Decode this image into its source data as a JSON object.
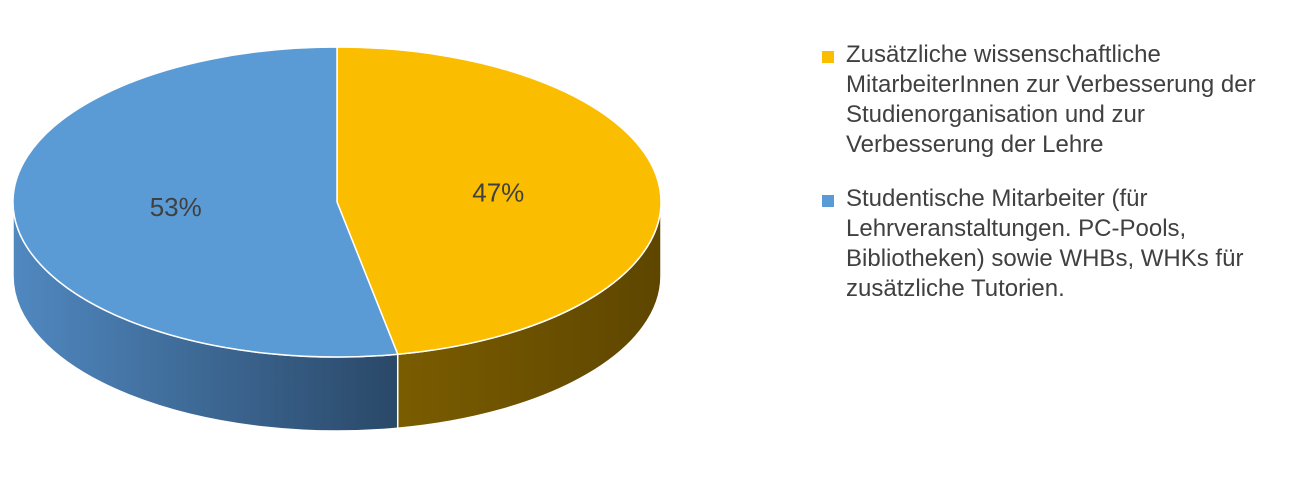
{
  "chart_data": {
    "type": "pie3d",
    "categories": [
      "Zusätzliche wissenschaftliche MitarbeiterInnen zur Verbesserung der Studienorganisation und zur Verbesserung der Lehre",
      "Studentische Mitarbeiter (für Lehrveranstaltungen. PC-Pools, Bibliotheken) sowie WHBs, WHKs für zusätzliche Tutorien."
    ],
    "values": [
      47,
      53
    ],
    "value_labels": [
      "47%",
      "53%"
    ],
    "colors": [
      "#fbbd00",
      "#5b9bd5"
    ],
    "side_colors": [
      [
        "#7a5c00",
        "#5e4600"
      ],
      [
        "#5088c0",
        "#2a4868"
      ]
    ],
    "legend": "right"
  }
}
